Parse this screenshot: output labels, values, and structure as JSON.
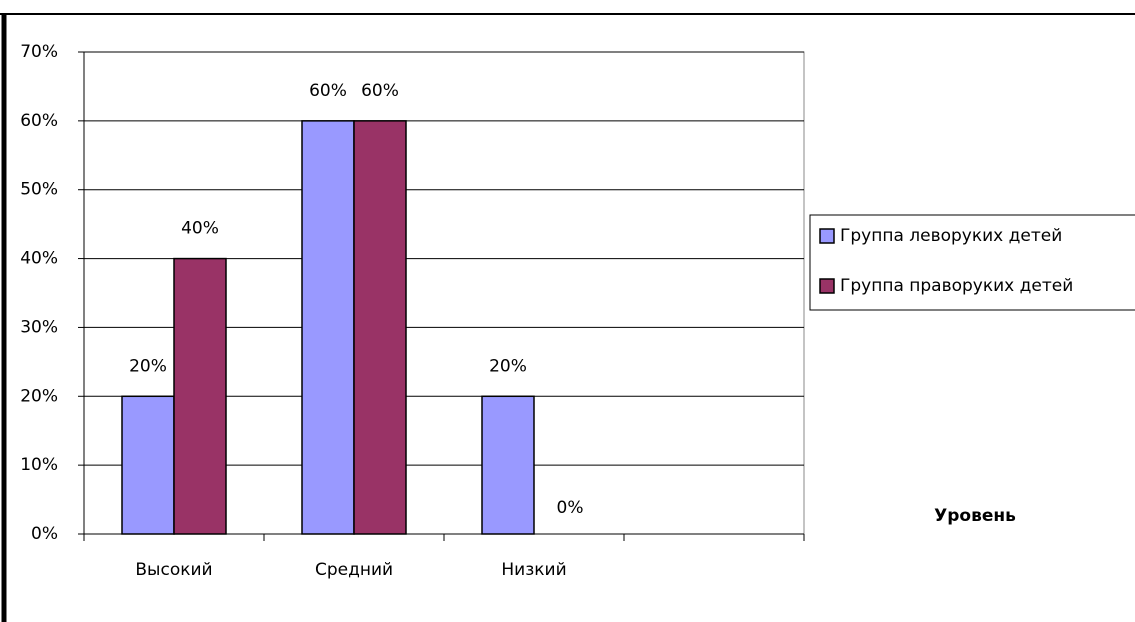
{
  "chart_data": {
    "type": "bar",
    "categories": [
      "Высокий",
      "Средний",
      "Низкий",
      null
    ],
    "series": [
      {
        "name": "Группа леворуких детей",
        "color": "#9999ff",
        "values": [
          20,
          60,
          20,
          null
        ],
        "value_labels": [
          "20%",
          "60%",
          "20%",
          null
        ]
      },
      {
        "name": "Группа праворуких детей",
        "color": "#993366",
        "values": [
          40,
          60,
          0,
          null
        ],
        "value_labels": [
          "40%",
          "60%",
          "0%",
          null
        ]
      }
    ],
    "x_label": "Уровень",
    "ylim": [
      0,
      70
    ],
    "yticks": [
      {
        "value": 0,
        "label": "0%"
      },
      {
        "value": 10,
        "label": "10%"
      },
      {
        "value": 20,
        "label": "20%"
      },
      {
        "value": 30,
        "label": "30%"
      },
      {
        "value": 40,
        "label": "40%"
      },
      {
        "value": 50,
        "label": "50%"
      },
      {
        "value": 60,
        "label": "60%"
      },
      {
        "value": 70,
        "label": "70%"
      }
    ],
    "grid": true
  }
}
